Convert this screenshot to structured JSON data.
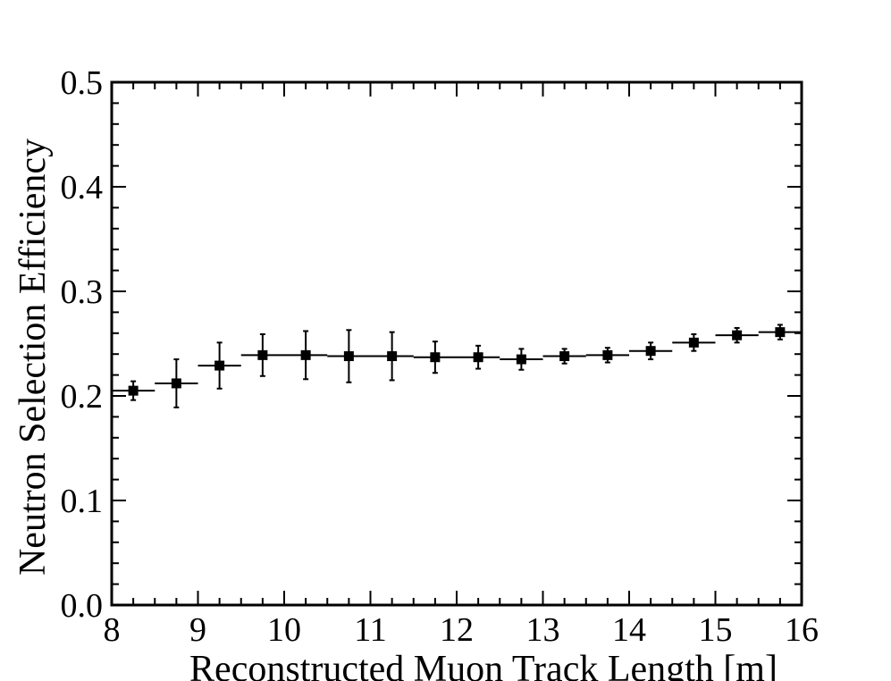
{
  "chart_data": {
    "type": "scatter",
    "title": "",
    "xlabel": "Reconstructed Muon Track Length [m]",
    "ylabel": "Neutron Selection Efficiency",
    "xlim": [
      8,
      16
    ],
    "ylim": [
      0.0,
      0.5
    ],
    "x_ticks": [
      "8",
      "9",
      "10",
      "11",
      "12",
      "13",
      "14",
      "15",
      "16"
    ],
    "y_ticks": [
      "0.0",
      "0.1",
      "0.2",
      "0.3",
      "0.4",
      "0.5"
    ],
    "grid": false,
    "legend": "none",
    "marker": "square",
    "color": "#000000",
    "series": [
      {
        "x": [
          8.25,
          8.75,
          9.25,
          9.75,
          10.25,
          10.75,
          11.25,
          11.75,
          12.25,
          12.75,
          13.25,
          13.75,
          14.25,
          14.75,
          15.25,
          15.75
        ],
        "x_bin_halfwidth": 0.25,
        "y": [
          0.205,
          0.212,
          0.229,
          0.239,
          0.239,
          0.238,
          0.238,
          0.237,
          0.237,
          0.235,
          0.238,
          0.239,
          0.243,
          0.251,
          0.258,
          0.261
        ],
        "y_err": [
          0.009,
          0.023,
          0.022,
          0.02,
          0.023,
          0.025,
          0.023,
          0.015,
          0.011,
          0.01,
          0.007,
          0.007,
          0.008,
          0.008,
          0.007,
          0.007
        ]
      }
    ]
  }
}
